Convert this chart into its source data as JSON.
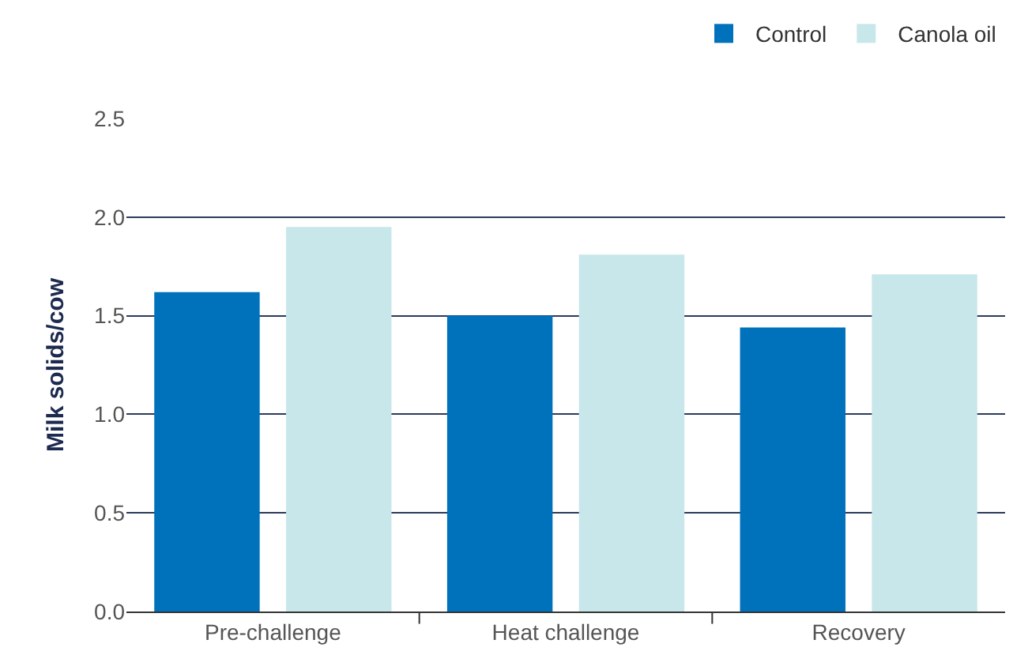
{
  "chart_data": {
    "type": "bar",
    "ylabel": "Milk solids/cow",
    "categories": [
      "Pre-challenge",
      "Heat challenge",
      "Recovery"
    ],
    "series": [
      {
        "name": "Control",
        "color": "#0071bb",
        "values": [
          1.62,
          1.5,
          1.44
        ]
      },
      {
        "name": "Canola oil",
        "color": "#c8e7ea",
        "values": [
          1.95,
          1.81,
          1.71
        ]
      }
    ],
    "ylim": [
      0,
      2.5
    ],
    "yticks": [
      {
        "value": 0,
        "label": "0.0"
      },
      {
        "value": 0.5,
        "label": "0.5"
      },
      {
        "value": 1,
        "label": "1.0"
      },
      {
        "value": 1.5,
        "label": "1.5"
      },
      {
        "value": 2,
        "label": "2.0"
      },
      {
        "value": 2.5,
        "label": "2.5"
      }
    ],
    "grid": "y",
    "legend": "top right"
  }
}
